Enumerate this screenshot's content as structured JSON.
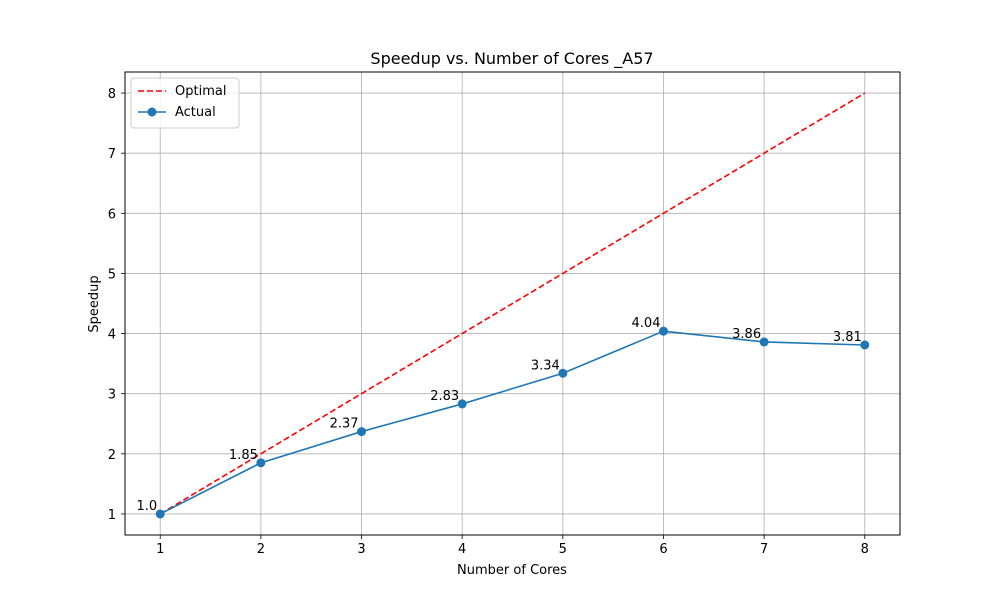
{
  "chart_data": {
    "type": "line",
    "title": "Speedup vs. Number of Cores _A57",
    "xlabel": "Number of Cores",
    "ylabel": "Speedup",
    "x": [
      1,
      2,
      3,
      4,
      5,
      6,
      7,
      8
    ],
    "xticks": [
      1,
      2,
      3,
      4,
      5,
      6,
      7,
      8
    ],
    "yticks": [
      1,
      2,
      3,
      4,
      5,
      6,
      7,
      8
    ],
    "xlim": [
      0.65,
      8.35
    ],
    "ylim": [
      0.65,
      8.35
    ],
    "grid": true,
    "legend_position": "top-left",
    "series": [
      {
        "name": "Optimal",
        "style": "dashed",
        "color": "#ff0000",
        "values": [
          1,
          2,
          3,
          4,
          5,
          6,
          7,
          8
        ]
      },
      {
        "name": "Actual",
        "style": "solid-markers",
        "color": "#1f77b4",
        "values": [
          1.0,
          1.85,
          2.37,
          2.83,
          3.34,
          4.04,
          3.86,
          3.81
        ],
        "labels": [
          "1.0",
          "1.85",
          "2.37",
          "2.83",
          "3.34",
          "4.04",
          "3.86",
          "3.81"
        ]
      }
    ]
  }
}
